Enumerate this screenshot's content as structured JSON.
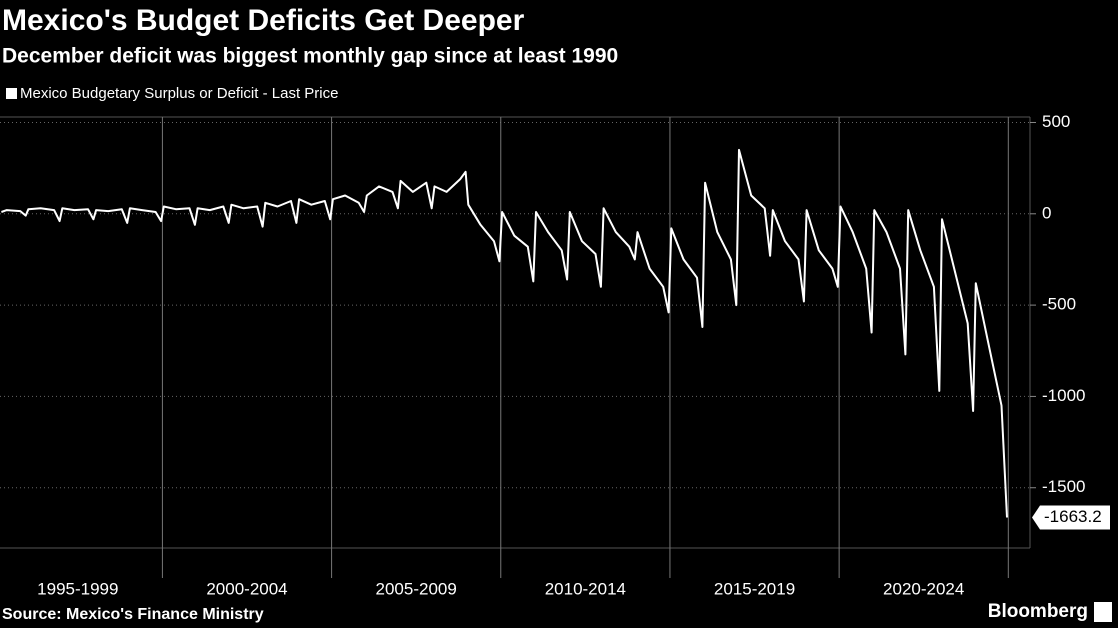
{
  "chart_data": {
    "type": "line",
    "title": "Mexico's Budget Deficits Get Deeper",
    "subtitle": "December deficit was biggest monthly gap since at least 1990",
    "source": "Source: Mexico's Finance Ministry",
    "brand": "Bloomberg",
    "xlim": [
      1995.2,
      2025.05
    ],
    "ylim": [
      -1830,
      530
    ],
    "yticks": [
      500,
      0,
      -500,
      -1000,
      -1500
    ],
    "xticks": [
      {
        "value": 1997.5,
        "label": "1995-1999"
      },
      {
        "value": 2002.5,
        "label": "2000-2004"
      },
      {
        "value": 2007.5,
        "label": "2005-2009"
      },
      {
        "value": 2012.5,
        "label": "2010-2014"
      },
      {
        "value": 2017.5,
        "label": "2015-2019"
      },
      {
        "value": 2022.5,
        "label": "2020-2024"
      }
    ],
    "grid": true,
    "series": [
      {
        "name": "Mexico Budgetary Surplus or Deficit - Last Price",
        "color": "#ffffff",
        "last_label": "-1663.2",
        "x": [
          1995.24,
          1995.4,
          1995.8,
          1995.96,
          1996.04,
          1996.4,
          1996.8,
          1996.96,
          1997.04,
          1997.4,
          1997.8,
          1997.96,
          1998.04,
          1998.4,
          1998.8,
          1998.96,
          1999.04,
          1999.4,
          1999.8,
          1999.96,
          2000.04,
          2000.4,
          2000.8,
          2000.96,
          2001.04,
          2001.4,
          2001.8,
          2001.96,
          2002.04,
          2002.4,
          2002.8,
          2002.96,
          2003.04,
          2003.4,
          2003.8,
          2003.96,
          2004.04,
          2004.4,
          2004.8,
          2004.96,
          2005.04,
          2005.4,
          2005.8,
          2005.96,
          2006.04,
          2006.4,
          2006.8,
          2006.96,
          2007.04,
          2007.4,
          2007.8,
          2007.96,
          2008.04,
          2008.4,
          2008.8,
          2008.96,
          2009.04,
          2009.4,
          2009.8,
          2009.96,
          2010.04,
          2010.4,
          2010.8,
          2010.96,
          2011.04,
          2011.4,
          2011.8,
          2011.96,
          2012.04,
          2012.4,
          2012.8,
          2012.96,
          2013.04,
          2013.4,
          2013.8,
          2013.96,
          2014.04,
          2014.4,
          2014.8,
          2014.96,
          2015.04,
          2015.4,
          2015.8,
          2015.96,
          2016.04,
          2016.4,
          2016.8,
          2016.96,
          2017.04,
          2017.4,
          2017.8,
          2017.96,
          2018.04,
          2018.4,
          2018.8,
          2018.96,
          2019.04,
          2019.4,
          2019.8,
          2019.96,
          2020.04,
          2020.4,
          2020.8,
          2020.96,
          2021.04,
          2021.4,
          2021.8,
          2021.96,
          2022.04,
          2022.4,
          2022.8,
          2022.96,
          2023.04,
          2023.4,
          2023.8,
          2023.96,
          2024.04,
          2024.4,
          2024.8,
          2024.96
        ],
        "values": [
          10,
          20,
          15,
          -10,
          25,
          30,
          20,
          -40,
          30,
          20,
          25,
          -30,
          20,
          15,
          25,
          -50,
          30,
          20,
          10,
          -40,
          40,
          25,
          30,
          -60,
          30,
          20,
          40,
          -50,
          50,
          30,
          40,
          -70,
          60,
          40,
          70,
          -50,
          80,
          50,
          70,
          -30,
          80,
          100,
          60,
          10,
          100,
          150,
          120,
          30,
          180,
          120,
          170,
          30,
          150,
          120,
          190,
          230,
          50,
          -60,
          -150,
          -260,
          10,
          -120,
          -180,
          -370,
          10,
          -100,
          -200,
          -360,
          10,
          -150,
          -220,
          -400,
          30,
          -100,
          -180,
          -250,
          -100,
          -300,
          -400,
          -540,
          -80,
          -250,
          -350,
          -620,
          170,
          -100,
          -250,
          -500,
          350,
          100,
          30,
          -230,
          20,
          -150,
          -250,
          -480,
          20,
          -200,
          -300,
          -400,
          40,
          -100,
          -300,
          -650,
          20,
          -100,
          -300,
          -770,
          20,
          -200,
          -400,
          -970,
          -30,
          -300,
          -600,
          -1080,
          -380,
          -700,
          -1050,
          -1663.2
        ]
      }
    ]
  }
}
